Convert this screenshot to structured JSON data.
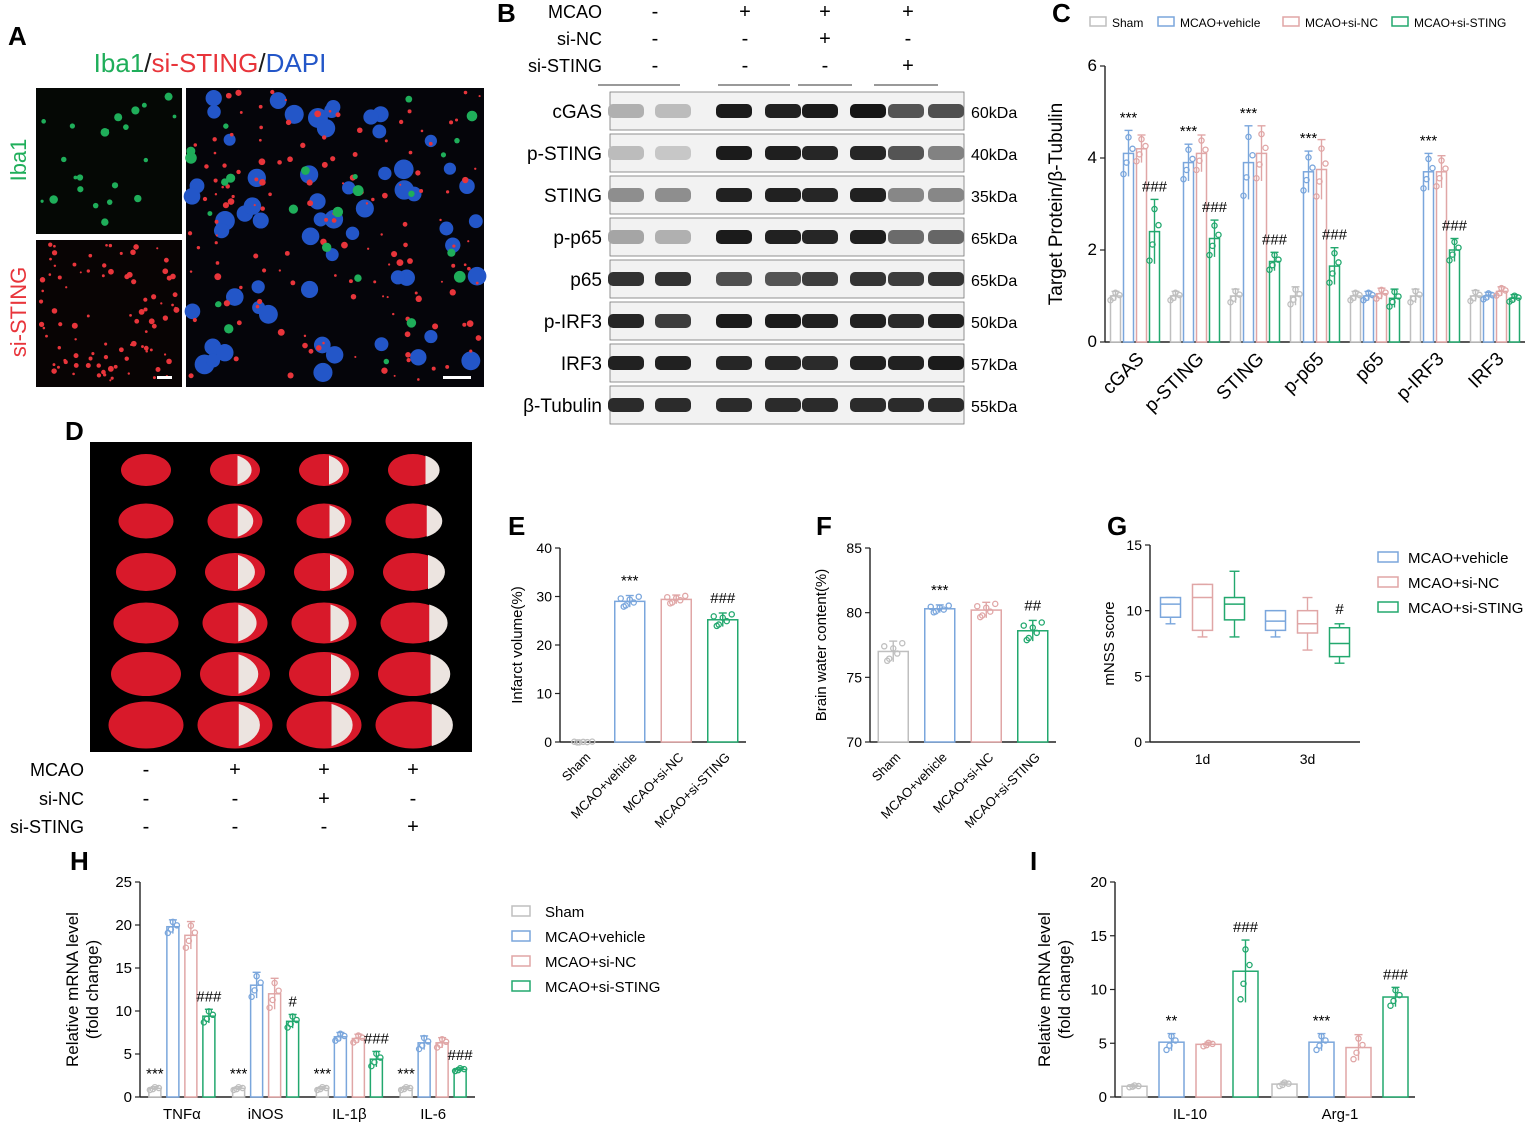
{
  "colors": {
    "sham": "#bfbfbf",
    "vehicle": "#7aa6dc",
    "si_nc": "#e0a6a6",
    "si_sting": "#22a86e",
    "iba1_green": "#1fae5a",
    "sting_red": "#e8353b",
    "dapi_blue": "#2356c8"
  },
  "panel_letters": [
    "A",
    "B",
    "C",
    "D",
    "E",
    "F",
    "G",
    "H",
    "I"
  ],
  "panelA": {
    "title_iba1": "Iba1",
    "title_sep1": "/",
    "title_sting": "si-STING",
    "title_sep2": "/",
    "title_dapi": "DAPI",
    "label_iba1": "Iba1",
    "label_sting": "si-STING"
  },
  "treatment_labels": [
    "MCAO",
    "si-NC",
    "si-STING"
  ],
  "treatment_matrix": [
    [
      "-",
      "+",
      "+",
      "+"
    ],
    [
      "-",
      "-",
      "+",
      "-"
    ],
    [
      "-",
      "-",
      "-",
      "+"
    ]
  ],
  "panelB": {
    "proteins": [
      "cGAS",
      "p-STING",
      "STING",
      "p-p65",
      "p65",
      "p-IRF3",
      "IRF3",
      "β-Tubulin"
    ],
    "sizes": [
      "60kDa",
      "40kDa",
      "35kDa",
      "65kDa",
      "65kDa",
      "50kDa",
      "57kDa",
      "55kDa"
    ],
    "intensity": [
      [
        0.3,
        0.25,
        0.95,
        0.92,
        0.95,
        0.97,
        0.7,
        0.72
      ],
      [
        0.25,
        0.2,
        0.95,
        0.93,
        0.9,
        0.9,
        0.7,
        0.5
      ],
      [
        0.45,
        0.45,
        0.92,
        0.92,
        0.9,
        0.92,
        0.48,
        0.48
      ],
      [
        0.35,
        0.3,
        0.95,
        0.92,
        0.9,
        0.93,
        0.6,
        0.62
      ],
      [
        0.85,
        0.85,
        0.72,
        0.7,
        0.8,
        0.84,
        0.8,
        0.84
      ],
      [
        0.9,
        0.8,
        0.95,
        0.95,
        0.92,
        0.92,
        0.88,
        0.92
      ],
      [
        0.92,
        0.92,
        0.9,
        0.9,
        0.88,
        0.92,
        0.92,
        0.95
      ],
      [
        0.88,
        0.88,
        0.88,
        0.88,
        0.88,
        0.88,
        0.88,
        0.88
      ]
    ]
  },
  "panelD": {
    "rows": 6,
    "infarct_fraction": [
      0,
      0.45,
      0.4,
      0.25
    ]
  },
  "chart_data": [
    {
      "id": "C",
      "type": "bar",
      "ylabel": "Target Protein/β-Tubulin",
      "ylim": [
        0,
        6
      ],
      "yticks": [
        0,
        2,
        4,
        6
      ],
      "categories": [
        "cGAS",
        "p-STING",
        "STING",
        "p-p65",
        "p65",
        "p-IRF3",
        "IRF3"
      ],
      "legend": [
        "Sham",
        "MCAO+vehicle",
        "MCAO+si-NC",
        "MCAO+si-STING"
      ],
      "legend_position": "top",
      "series": [
        {
          "name": "Sham",
          "values": [
            1.0,
            1.0,
            1.0,
            1.0,
            1.0,
            1.0,
            1.0
          ],
          "errors": [
            0.1,
            0.1,
            0.15,
            0.2,
            0.1,
            0.15,
            0.12
          ]
        },
        {
          "name": "MCAO+vehicle",
          "values": [
            4.1,
            3.9,
            3.9,
            3.7,
            1.0,
            3.7,
            1.0
          ],
          "errors": [
            0.5,
            0.4,
            0.8,
            0.45,
            0.1,
            0.4,
            0.08
          ]
        },
        {
          "name": "MCAO+si-NC",
          "values": [
            4.2,
            4.1,
            4.1,
            3.75,
            1.05,
            3.7,
            1.1
          ],
          "errors": [
            0.3,
            0.4,
            0.6,
            0.65,
            0.12,
            0.35,
            0.1
          ]
        },
        {
          "name": "MCAO+si-STING",
          "values": [
            2.4,
            2.25,
            1.75,
            1.65,
            0.95,
            2.0,
            0.95
          ],
          "errors": [
            0.7,
            0.4,
            0.2,
            0.4,
            0.2,
            0.25,
            0.08
          ]
        }
      ],
      "annotations": [
        {
          "series": 1,
          "category": 0,
          "text": "***"
        },
        {
          "series": 3,
          "category": 0,
          "text": "###"
        },
        {
          "series": 1,
          "category": 1,
          "text": "***"
        },
        {
          "series": 3,
          "category": 1,
          "text": "###"
        },
        {
          "series": 1,
          "category": 2,
          "text": "***"
        },
        {
          "series": 3,
          "category": 2,
          "text": "###"
        },
        {
          "series": 1,
          "category": 3,
          "text": "***"
        },
        {
          "series": 3,
          "category": 3,
          "text": "###"
        },
        {
          "series": 1,
          "category": 5,
          "text": "***"
        },
        {
          "series": 3,
          "category": 5,
          "text": "###"
        }
      ]
    },
    {
      "id": "E",
      "type": "bar",
      "ylabel": "Infarct volume(%)",
      "ylim": [
        0,
        40
      ],
      "yticks": [
        0,
        10,
        20,
        30,
        40
      ],
      "categories": [
        "Sham",
        "MCAO+vehicle",
        "MCAO+si-NC",
        "MCAO+si-STING"
      ],
      "values": [
        0,
        29.0,
        29.4,
        25.2
      ],
      "errors": [
        0.1,
        1.2,
        0.9,
        1.4
      ],
      "annotations": [
        {
          "category": 1,
          "text": "***"
        },
        {
          "category": 3,
          "text": "###"
        }
      ]
    },
    {
      "id": "F",
      "type": "bar",
      "ylabel": "Brain water content(%)",
      "ylim": [
        70,
        85
      ],
      "yticks": [
        70,
        75,
        80,
        85
      ],
      "categories": [
        "Sham",
        "MCAO+vehicle",
        "MCAO+si-NC",
        "MCAO+si-STING"
      ],
      "values": [
        77.0,
        80.3,
        80.2,
        78.6
      ],
      "errors": [
        0.8,
        0.3,
        0.6,
        0.8
      ],
      "annotations": [
        {
          "category": 1,
          "text": "***"
        },
        {
          "category": 3,
          "text": "##"
        }
      ]
    },
    {
      "id": "G",
      "type": "box",
      "ylabel": "mNSS score",
      "ylim": [
        0,
        15
      ],
      "yticks": [
        0,
        5,
        10,
        15
      ],
      "categories": [
        "1d",
        "3d"
      ],
      "legend": [
        "MCAO+vehicle",
        "MCAO+si-NC",
        "MCAO+si-STING"
      ],
      "legend_position": "right",
      "boxes": [
        [
          {
            "min": 9,
            "q1": 9.5,
            "median": 10.5,
            "q3": 11,
            "max": 11
          },
          {
            "min": 8,
            "q1": 8.5,
            "median": 11,
            "q3": 12,
            "max": 12
          },
          {
            "min": 8,
            "q1": 9.3,
            "median": 10.5,
            "q3": 11,
            "max": 13
          }
        ],
        [
          {
            "min": 8,
            "q1": 8.5,
            "median": 9.2,
            "q3": 10,
            "max": 10
          },
          {
            "min": 7,
            "q1": 8.3,
            "median": 9,
            "q3": 10,
            "max": 11
          },
          {
            "min": 6,
            "q1": 6.5,
            "median": 7.5,
            "q3": 8.7,
            "max": 9
          }
        ]
      ],
      "annotations": [
        {
          "category": 1,
          "series": 2,
          "text": "#"
        }
      ]
    },
    {
      "id": "H",
      "type": "bar",
      "ylabel": "Relative mRNA level",
      "ylabel2": "(fold change)",
      "ylim": [
        0,
        25
      ],
      "yticks": [
        0,
        5,
        10,
        15,
        20,
        25
      ],
      "categories": [
        "TNFα",
        "iNOS",
        "IL-1β",
        "IL-6"
      ],
      "legend": [
        "Sham",
        "MCAO+vehicle",
        "MCAO+si-NC",
        "MCAO+si-STING"
      ],
      "legend_position": "right",
      "series": [
        {
          "name": "Sham",
          "values": [
            1.0,
            1.0,
            1.0,
            1.0
          ],
          "errors": [
            0.2,
            0.2,
            0.2,
            0.2
          ]
        },
        {
          "name": "MCAO+vehicle",
          "values": [
            19.8,
            13.0,
            7.0,
            6.3
          ],
          "errors": [
            0.8,
            1.5,
            0.5,
            0.8
          ]
        },
        {
          "name": "MCAO+si-NC",
          "values": [
            18.8,
            12.0,
            6.8,
            6.3
          ],
          "errors": [
            1.6,
            1.8,
            0.5,
            0.6
          ]
        },
        {
          "name": "MCAO+si-STING",
          "values": [
            9.4,
            8.8,
            4.4,
            3.2
          ],
          "errors": [
            0.8,
            0.8,
            0.9,
            0.2
          ]
        }
      ],
      "annotations": [
        {
          "series": 0,
          "category": 0,
          "text": "***"
        },
        {
          "series": 3,
          "category": 0,
          "text": "###"
        },
        {
          "series": 0,
          "category": 1,
          "text": "***"
        },
        {
          "series": 3,
          "category": 1,
          "text": "#"
        },
        {
          "series": 0,
          "category": 2,
          "text": "***"
        },
        {
          "series": 3,
          "category": 2,
          "text": "###"
        },
        {
          "series": 0,
          "category": 3,
          "text": "***"
        },
        {
          "series": 3,
          "category": 3,
          "text": "###"
        }
      ]
    },
    {
      "id": "I",
      "type": "bar",
      "ylabel": "Relative mRNA level",
      "ylabel2": "(fold change)",
      "ylim": [
        0,
        20
      ],
      "yticks": [
        0,
        5,
        10,
        15,
        20
      ],
      "categories": [
        "IL-10",
        "Arg-1"
      ],
      "series": [
        {
          "name": "Sham",
          "values": [
            1.0,
            1.2
          ],
          "errors": [
            0.1,
            0.2
          ]
        },
        {
          "name": "MCAO+vehicle",
          "values": [
            5.1,
            5.1
          ],
          "errors": [
            0.8,
            0.8
          ]
        },
        {
          "name": "MCAO+si-NC",
          "values": [
            4.9,
            4.6
          ],
          "errors": [
            0.2,
            1.2
          ]
        },
        {
          "name": "MCAO+si-STING",
          "values": [
            11.7,
            9.3
          ],
          "errors": [
            2.9,
            0.9
          ]
        }
      ],
      "annotations": [
        {
          "series": 1,
          "category": 0,
          "text": "**"
        },
        {
          "series": 3,
          "category": 0,
          "text": "###"
        },
        {
          "series": 1,
          "category": 1,
          "text": "***"
        },
        {
          "series": 3,
          "category": 1,
          "text": "###"
        }
      ]
    }
  ]
}
